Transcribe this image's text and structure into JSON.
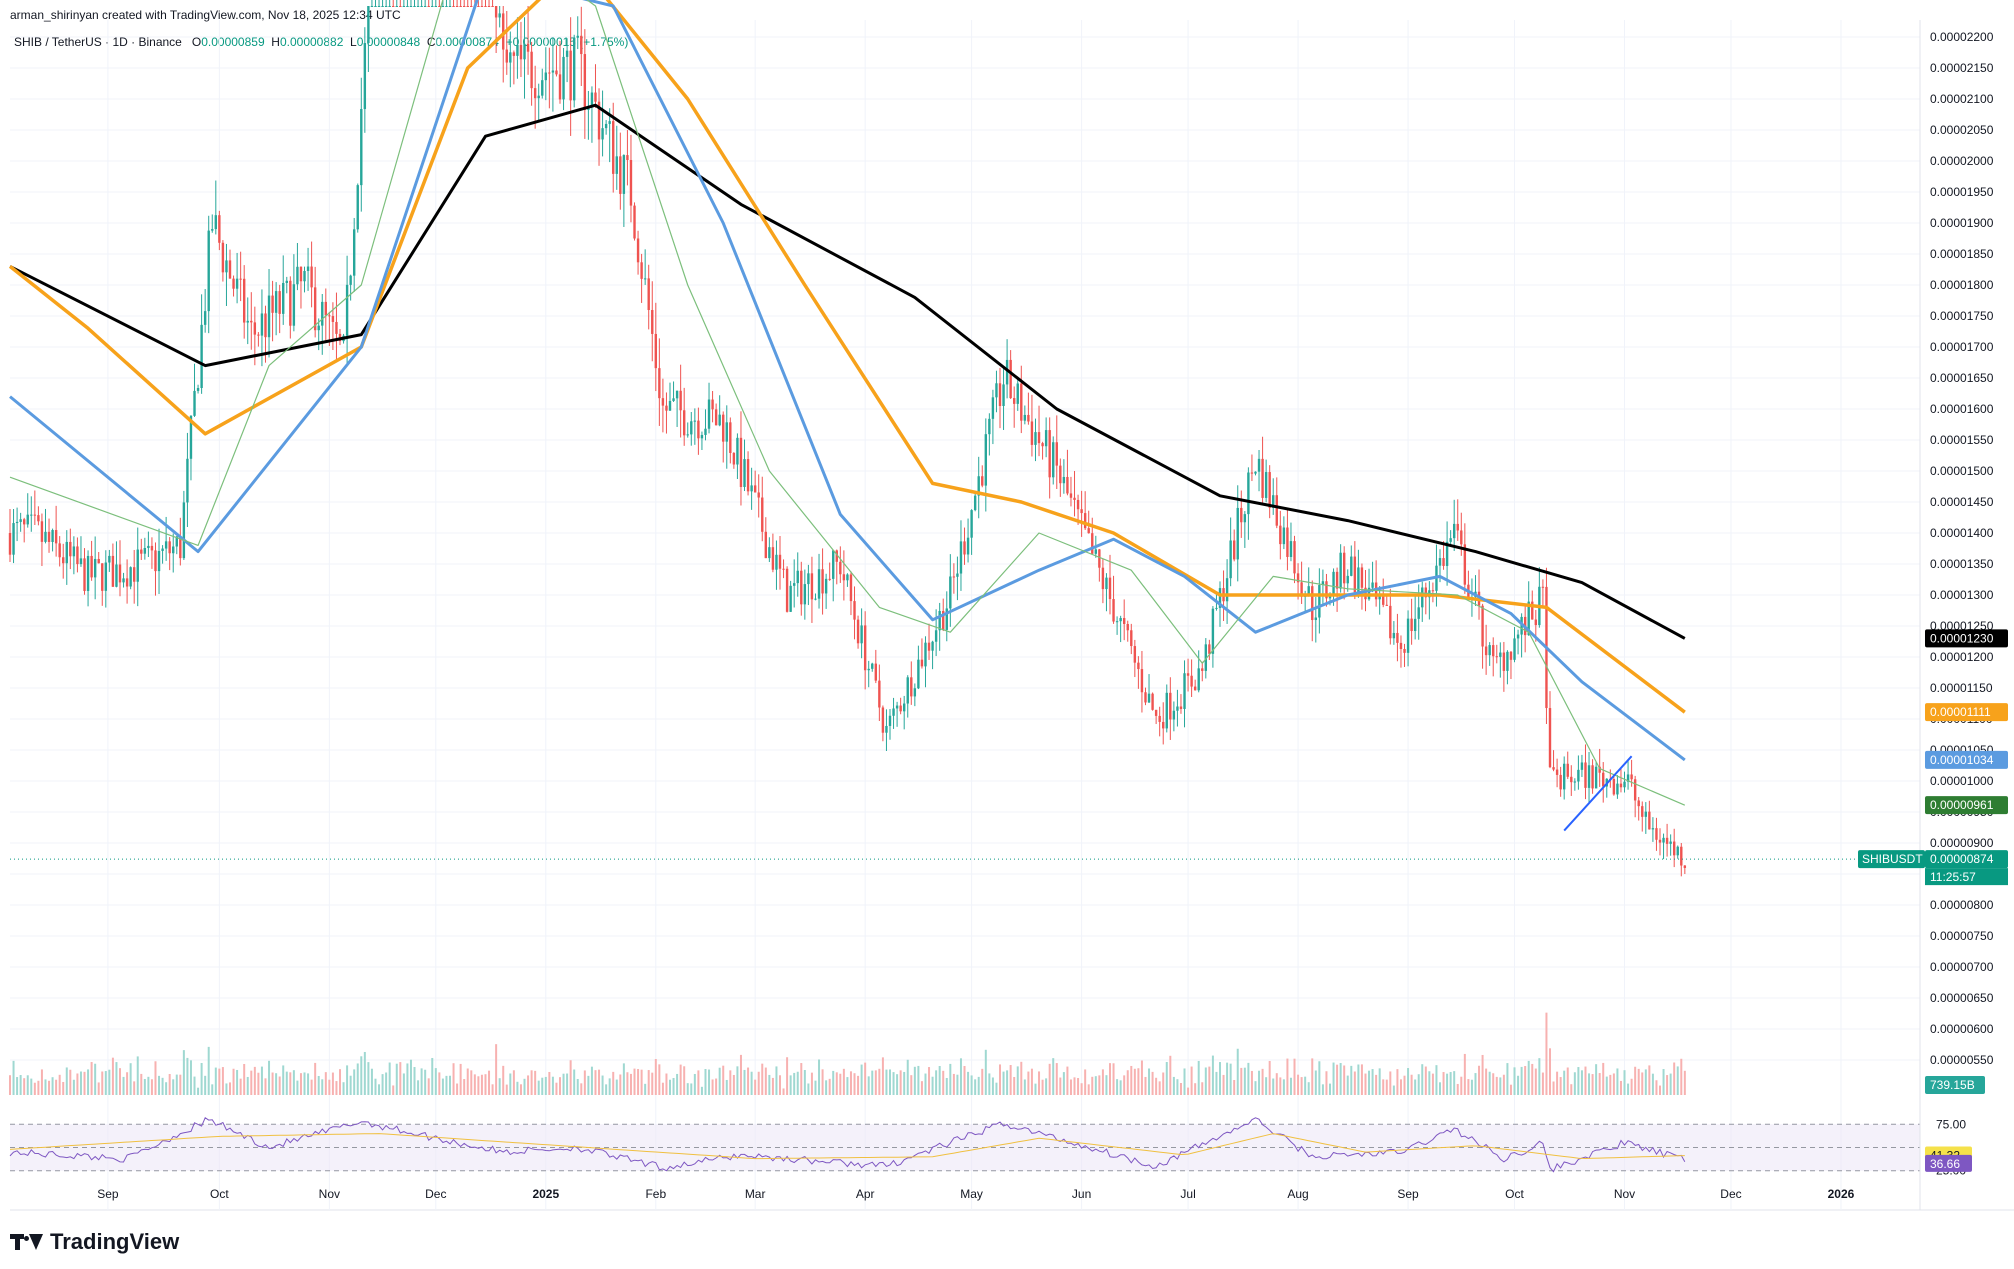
{
  "caption": "arman_shirinyan created with TradingView.com, Nov 18, 2025 12:34 UTC",
  "symbol": {
    "name": "SHIB / TetherUS · 1D · Binance",
    "o_label": "O",
    "o": "0.00000859",
    "h_label": "H",
    "h": "0.00000882",
    "l_label": "L",
    "l": "0.00000848",
    "c_label": "C",
    "c": "0.00000874",
    "change": "+0.00000015 (+1.75%)"
  },
  "brand": "TradingView",
  "colors": {
    "up": "#26a69a",
    "down": "#ef5350",
    "ma_black": "#000000",
    "ma_orange": "#f7a21b",
    "ma_blue": "#5b9be0",
    "ma_green": "#7cbf7c",
    "rsi": "#7e57c2",
    "rsi_ma": "#f0c040",
    "trendline": "#2962ff"
  },
  "chart_data": [
    {
      "type": "candlestick",
      "title": "SHIB / TetherUS · 1D · Binance",
      "y_ticks": [
        "0.00002200",
        "0.00002150",
        "0.00002100",
        "0.00002050",
        "0.00002000",
        "0.00001950",
        "0.00001900",
        "0.00001850",
        "0.00001800",
        "0.00001750",
        "0.00001700",
        "0.00001650",
        "0.00001600",
        "0.00001550",
        "0.00001500",
        "0.00001450",
        "0.00001400",
        "0.00001350",
        "0.00001300",
        "0.00001250",
        "0.00001200",
        "0.00001150",
        "0.00001100",
        "0.00001050",
        "0.00001000",
        "0.00000950",
        "0.00000900",
        "0.00000850",
        "0.00000800",
        "0.00000750",
        "0.00000700",
        "0.00000650",
        "0.00000600",
        "0.00000550"
      ],
      "ylim": [
        5.5e-06,
        2.21e-05
      ],
      "x_ticks": [
        "Sep",
        "Oct",
        "Nov",
        "Dec",
        "2025",
        "Feb",
        "Mar",
        "Apr",
        "May",
        "Jun",
        "Jul",
        "Aug",
        "Sep",
        "Oct",
        "Nov",
        "Dec",
        "2026"
      ],
      "price_anchor_points": [
        {
          "date": "2024-08-10",
          "close": 1.4e-05
        },
        {
          "date": "2024-08-25",
          "close": 1.33e-05
        },
        {
          "date": "2024-09-10",
          "close": 1.35e-05
        },
        {
          "date": "2024-09-20",
          "close": 1.38e-05
        },
        {
          "date": "2024-09-29",
          "close": 1.9e-05
        },
        {
          "date": "2024-10-10",
          "close": 1.72e-05
        },
        {
          "date": "2024-10-25",
          "close": 1.8e-05
        },
        {
          "date": "2024-11-05",
          "close": 1.68e-05
        },
        {
          "date": "2024-11-12",
          "close": 2.25e-05
        },
        {
          "date": "2024-12-05",
          "close": 3.1e-05
        },
        {
          "date": "2024-12-20",
          "close": 2.15e-05
        },
        {
          "date": "2025-01-10",
          "close": 2.15e-05
        },
        {
          "date": "2025-01-25",
          "close": 1.95e-05
        },
        {
          "date": "2025-02-03",
          "close": 1.6e-05
        },
        {
          "date": "2025-02-20",
          "close": 1.58e-05
        },
        {
          "date": "2025-03-10",
          "close": 1.3e-05
        },
        {
          "date": "2025-03-25",
          "close": 1.35e-05
        },
        {
          "date": "2025-04-07",
          "close": 1.08e-05
        },
        {
          "date": "2025-04-25",
          "close": 1.3e-05
        },
        {
          "date": "2025-05-10",
          "close": 1.65e-05
        },
        {
          "date": "2025-05-25",
          "close": 1.5e-05
        },
        {
          "date": "2025-06-10",
          "close": 1.28e-05
        },
        {
          "date": "2025-06-22",
          "close": 1.1e-05
        },
        {
          "date": "2025-07-05",
          "close": 1.18e-05
        },
        {
          "date": "2025-07-20",
          "close": 1.52e-05
        },
        {
          "date": "2025-08-05",
          "close": 1.28e-05
        },
        {
          "date": "2025-08-15",
          "close": 1.35e-05
        },
        {
          "date": "2025-08-30",
          "close": 1.22e-05
        },
        {
          "date": "2025-09-14",
          "close": 1.4e-05
        },
        {
          "date": "2025-09-25",
          "close": 1.18e-05
        },
        {
          "date": "2025-10-09",
          "close": 1.29e-05
        },
        {
          "date": "2025-10-11",
          "close": 1e-05
        },
        {
          "date": "2025-10-20",
          "close": 1.01e-05
        },
        {
          "date": "2025-11-02",
          "close": 1e-05
        },
        {
          "date": "2025-11-07",
          "close": 9.3e-06
        },
        {
          "date": "2025-11-18",
          "close": 8.74e-06
        }
      ],
      "moving_averages": [
        {
          "color": "black",
          "points": [
            {
              "date": "2024-08-03",
              "value": 1.83e-05
            },
            {
              "date": "2024-09-27",
              "value": 1.67e-05
            },
            {
              "date": "2024-11-10",
              "value": 1.72e-05
            },
            {
              "date": "2024-12-15",
              "value": 2.04e-05
            },
            {
              "date": "2025-01-15",
              "value": 2.09e-05
            },
            {
              "date": "2025-02-25",
              "value": 1.93e-05
            },
            {
              "date": "2025-04-15",
              "value": 1.78e-05
            },
            {
              "date": "2025-05-25",
              "value": 1.6e-05
            },
            {
              "date": "2025-07-10",
              "value": 1.46e-05
            },
            {
              "date": "2025-08-15",
              "value": 1.42e-05
            },
            {
              "date": "2025-09-20",
              "value": 1.37e-05
            },
            {
              "date": "2025-10-20",
              "value": 1.32e-05
            },
            {
              "date": "2025-11-18",
              "value": 1.23e-05
            }
          ]
        },
        {
          "color": "orange",
          "points": [
            {
              "date": "2024-08-03",
              "value": 1.83e-05
            },
            {
              "date": "2024-08-25",
              "value": 1.73e-05
            },
            {
              "date": "2024-09-27",
              "value": 1.56e-05
            },
            {
              "date": "2024-11-10",
              "value": 1.7e-05
            },
            {
              "date": "2024-12-10",
              "value": 2.15e-05
            },
            {
              "date": "2025-01-10",
              "value": 2.32e-05
            },
            {
              "date": "2025-02-10",
              "value": 2.1e-05
            },
            {
              "date": "2025-03-15",
              "value": 1.8e-05
            },
            {
              "date": "2025-04-20",
              "value": 1.48e-05
            },
            {
              "date": "2025-05-15",
              "value": 1.45e-05
            },
            {
              "date": "2025-06-10",
              "value": 1.4e-05
            },
            {
              "date": "2025-07-10",
              "value": 1.3e-05
            },
            {
              "date": "2025-08-10",
              "value": 1.3e-05
            },
            {
              "date": "2025-09-10",
              "value": 1.3e-05
            },
            {
              "date": "2025-10-10",
              "value": 1.28e-05
            },
            {
              "date": "2025-11-18",
              "value": 1.111e-05
            }
          ]
        },
        {
          "color": "blue",
          "points": [
            {
              "date": "2024-08-03",
              "value": 1.62e-05
            },
            {
              "date": "2024-09-25",
              "value": 1.37e-05
            },
            {
              "date": "2024-11-10",
              "value": 1.7e-05
            },
            {
              "date": "2024-12-15",
              "value": 2.3e-05
            },
            {
              "date": "2025-01-20",
              "value": 2.25e-05
            },
            {
              "date": "2025-02-20",
              "value": 1.9e-05
            },
            {
              "date": "2025-03-25",
              "value": 1.43e-05
            },
            {
              "date": "2025-04-20",
              "value": 1.26e-05
            },
            {
              "date": "2025-05-20",
              "value": 1.34e-05
            },
            {
              "date": "2025-06-10",
              "value": 1.39e-05
            },
            {
              "date": "2025-06-30",
              "value": 1.33e-05
            },
            {
              "date": "2025-07-20",
              "value": 1.24e-05
            },
            {
              "date": "2025-08-15",
              "value": 1.3e-05
            },
            {
              "date": "2025-09-10",
              "value": 1.33e-05
            },
            {
              "date": "2025-09-30",
              "value": 1.27e-05
            },
            {
              "date": "2025-10-20",
              "value": 1.16e-05
            },
            {
              "date": "2025-11-18",
              "value": 1.034e-05
            }
          ]
        },
        {
          "color": "green",
          "points": [
            {
              "date": "2024-08-03",
              "value": 1.49e-05
            },
            {
              "date": "2024-09-25",
              "value": 1.38e-05
            },
            {
              "date": "2024-10-15",
              "value": 1.67e-05
            },
            {
              "date": "2024-11-10",
              "value": 1.8e-05
            },
            {
              "date": "2024-12-10",
              "value": 2.4e-05
            },
            {
              "date": "2025-01-15",
              "value": 2.25e-05
            },
            {
              "date": "2025-02-10",
              "value": 1.8e-05
            },
            {
              "date": "2025-03-05",
              "value": 1.5e-05
            },
            {
              "date": "2025-04-05",
              "value": 1.28e-05
            },
            {
              "date": "2025-04-25",
              "value": 1.24e-05
            },
            {
              "date": "2025-05-20",
              "value": 1.4e-05
            },
            {
              "date": "2025-06-15",
              "value": 1.34e-05
            },
            {
              "date": "2025-07-05",
              "value": 1.19e-05
            },
            {
              "date": "2025-07-25",
              "value": 1.33e-05
            },
            {
              "date": "2025-08-15",
              "value": 1.31e-05
            },
            {
              "date": "2025-09-15",
              "value": 1.3e-05
            },
            {
              "date": "2025-10-05",
              "value": 1.24e-05
            },
            {
              "date": "2025-10-25",
              "value": 1.02e-05
            },
            {
              "date": "2025-11-18",
              "value": 9.61e-06
            }
          ]
        }
      ],
      "trendline": [
        {
          "date": "2025-10-15",
          "value": 9.2e-06
        },
        {
          "date": "2025-11-03",
          "value": 1.04e-05
        }
      ],
      "last_price_label": "SHIBUSDT",
      "price_tags": [
        {
          "label": "0.00001230",
          "color": "#000000"
        },
        {
          "label": "0.00001111",
          "color": "#f7a21b"
        },
        {
          "label": "0.00001034",
          "color": "#5b9be0"
        },
        {
          "label": "0.00000961",
          "color": "#2e7d32"
        },
        {
          "label": "0.00000874",
          "color": "#089981"
        }
      ],
      "countdown": "11:25:57",
      "volume_tag": "739.15B",
      "last_price": 8.74e-06
    },
    {
      "type": "line",
      "title": "RSI",
      "y_ticks": [
        "75.00",
        "25.00"
      ],
      "ylim": [
        15,
        85
      ],
      "bands": [
        25,
        50,
        75
      ],
      "rsi_tag": "36.66",
      "rsi_ma_tag": "41.32",
      "rsi_points": [
        {
          "date": "2024-08-03",
          "value": 45
        },
        {
          "date": "2024-09-05",
          "value": 38
        },
        {
          "date": "2024-09-28",
          "value": 80
        },
        {
          "date": "2024-10-15",
          "value": 50
        },
        {
          "date": "2024-11-10",
          "value": 78
        },
        {
          "date": "2024-12-01",
          "value": 60
        },
        {
          "date": "2024-12-20",
          "value": 45
        },
        {
          "date": "2025-01-10",
          "value": 50
        },
        {
          "date": "2025-02-03",
          "value": 28
        },
        {
          "date": "2025-02-25",
          "value": 42
        },
        {
          "date": "2025-03-20",
          "value": 35
        },
        {
          "date": "2025-04-07",
          "value": 30
        },
        {
          "date": "2025-05-10",
          "value": 76
        },
        {
          "date": "2025-06-05",
          "value": 48
        },
        {
          "date": "2025-06-22",
          "value": 30
        },
        {
          "date": "2025-07-20",
          "value": 80
        },
        {
          "date": "2025-08-05",
          "value": 40
        },
        {
          "date": "2025-08-30",
          "value": 45
        },
        {
          "date": "2025-09-14",
          "value": 70
        },
        {
          "date": "2025-09-28",
          "value": 38
        },
        {
          "date": "2025-10-09",
          "value": 55
        },
        {
          "date": "2025-10-11",
          "value": 26
        },
        {
          "date": "2025-11-01",
          "value": 55
        },
        {
          "date": "2025-11-18",
          "value": 36.66
        }
      ],
      "rsi_ma_points": [
        {
          "date": "2024-08-03",
          "value": 48
        },
        {
          "date": "2024-10-01",
          "value": 62
        },
        {
          "date": "2024-11-15",
          "value": 65
        },
        {
          "date": "2025-01-05",
          "value": 52
        },
        {
          "date": "2025-03-01",
          "value": 38
        },
        {
          "date": "2025-04-20",
          "value": 40
        },
        {
          "date": "2025-05-20",
          "value": 60
        },
        {
          "date": "2025-06-30",
          "value": 42
        },
        {
          "date": "2025-07-25",
          "value": 65
        },
        {
          "date": "2025-08-20",
          "value": 45
        },
        {
          "date": "2025-09-20",
          "value": 52
        },
        {
          "date": "2025-10-20",
          "value": 38
        },
        {
          "date": "2025-11-18",
          "value": 41.32
        }
      ]
    }
  ]
}
